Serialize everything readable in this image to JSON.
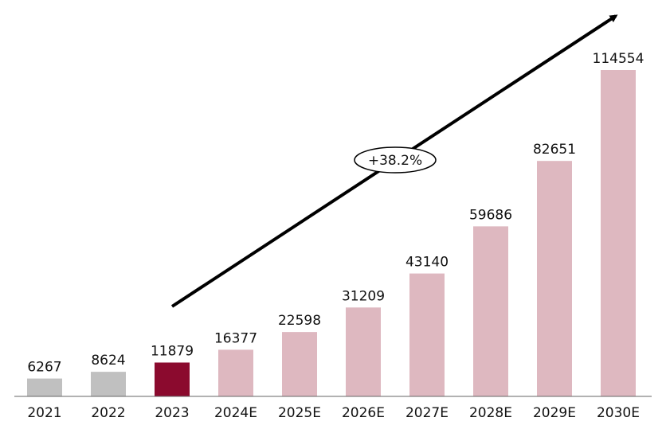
{
  "chart_data": {
    "type": "bar",
    "categories": [
      "2021",
      "2022",
      "2023",
      "2024E",
      "2025E",
      "2026E",
      "2027E",
      "2028E",
      "2029E",
      "2030E"
    ],
    "values": [
      6267,
      8624,
      11879,
      16377,
      22598,
      31209,
      43140,
      59686,
      82651,
      114554
    ],
    "colors": [
      "#c0c0c0",
      "#c0c0c0",
      "#8b0a2e",
      "#deb8c0",
      "#deb8c0",
      "#deb8c0",
      "#deb8c0",
      "#deb8c0",
      "#deb8c0",
      "#deb8c0"
    ],
    "annotation": "+38.2%"
  }
}
